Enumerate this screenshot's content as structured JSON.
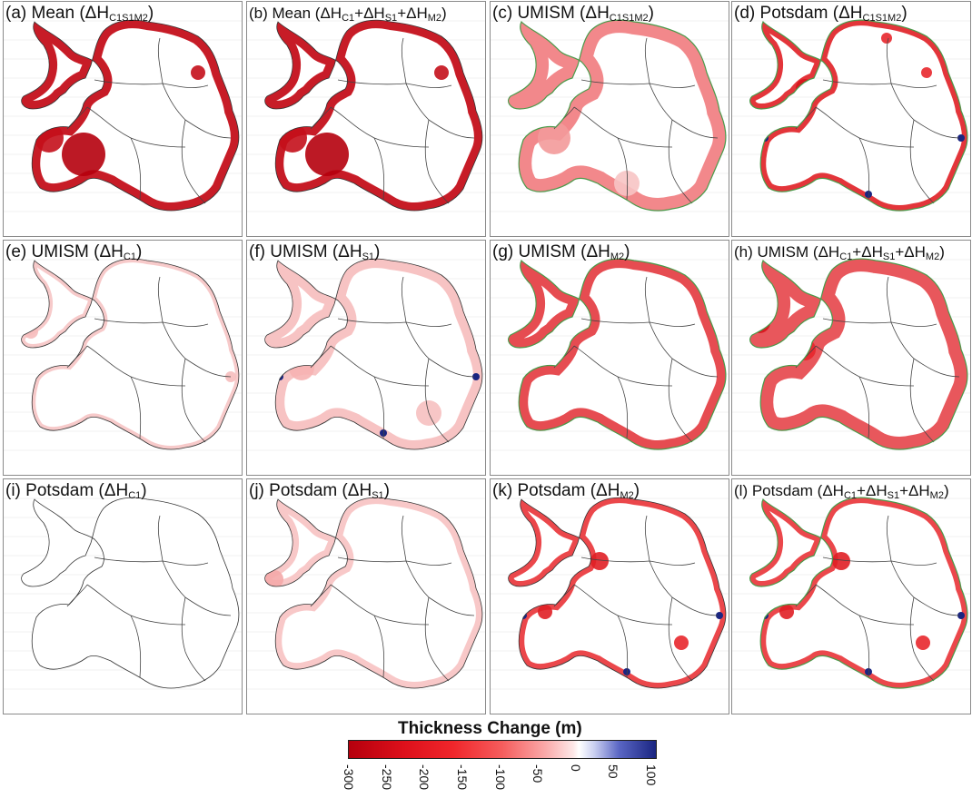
{
  "figure": {
    "panels": [
      {
        "letter": "(a)",
        "model": "Mean",
        "term": "ΔH",
        "sub1": "C1S1M2",
        "plus": []
      },
      {
        "letter": "(b)",
        "model": "Mean",
        "term": "ΔH",
        "sub1": "C1",
        "plus": [
          {
            "t": "ΔH",
            "s": "S1"
          },
          {
            "t": "ΔH",
            "s": "M2"
          }
        ]
      },
      {
        "letter": "(c)",
        "model": "UMISM",
        "term": "ΔH",
        "sub1": "C1S1M2",
        "plus": []
      },
      {
        "letter": "(d)",
        "model": "Potsdam",
        "term": "ΔH",
        "sub1": "C1S1M2",
        "plus": []
      },
      {
        "letter": "(e)",
        "model": "UMISM",
        "term": "ΔH",
        "sub1": "C1",
        "plus": []
      },
      {
        "letter": "(f)",
        "model": "UMISM",
        "term": "ΔH",
        "sub1": "S1",
        "plus": []
      },
      {
        "letter": "(g)",
        "model": "UMISM",
        "term": "ΔH",
        "sub1": "M2",
        "plus": []
      },
      {
        "letter": "(h)",
        "model": "UMISM",
        "term": "ΔH",
        "sub1": "C1",
        "plus": [
          {
            "t": "ΔH",
            "s": "S1"
          },
          {
            "t": "ΔH",
            "s": "M2"
          }
        ]
      },
      {
        "letter": "(i)",
        "model": "Potsdam",
        "term": "ΔH",
        "sub1": "C1",
        "plus": []
      },
      {
        "letter": "(j)",
        "model": "Potsdam",
        "term": "ΔH",
        "sub1": "S1",
        "plus": []
      },
      {
        "letter": "(k)",
        "model": "Potsdam",
        "term": "ΔH",
        "sub1": "M2",
        "plus": []
      },
      {
        "letter": "(l)",
        "model": "Potsdam",
        "term": "ΔH",
        "sub1": "C1",
        "plus": [
          {
            "t": "ΔH",
            "s": "S1"
          },
          {
            "t": "ΔH",
            "s": "M2"
          }
        ]
      }
    ],
    "colorbar": {
      "title": "Thickness Change (m)",
      "ticks": [
        "-300",
        "-250",
        "-200",
        "-150",
        "-100",
        "-50",
        "0",
        "50",
        "100"
      ],
      "colors": {
        "neg_max": "#b5000d",
        "neg_mid": "#f0262b",
        "zero": "#ffffff",
        "pos_max": "#1a2581"
      }
    }
  }
}
